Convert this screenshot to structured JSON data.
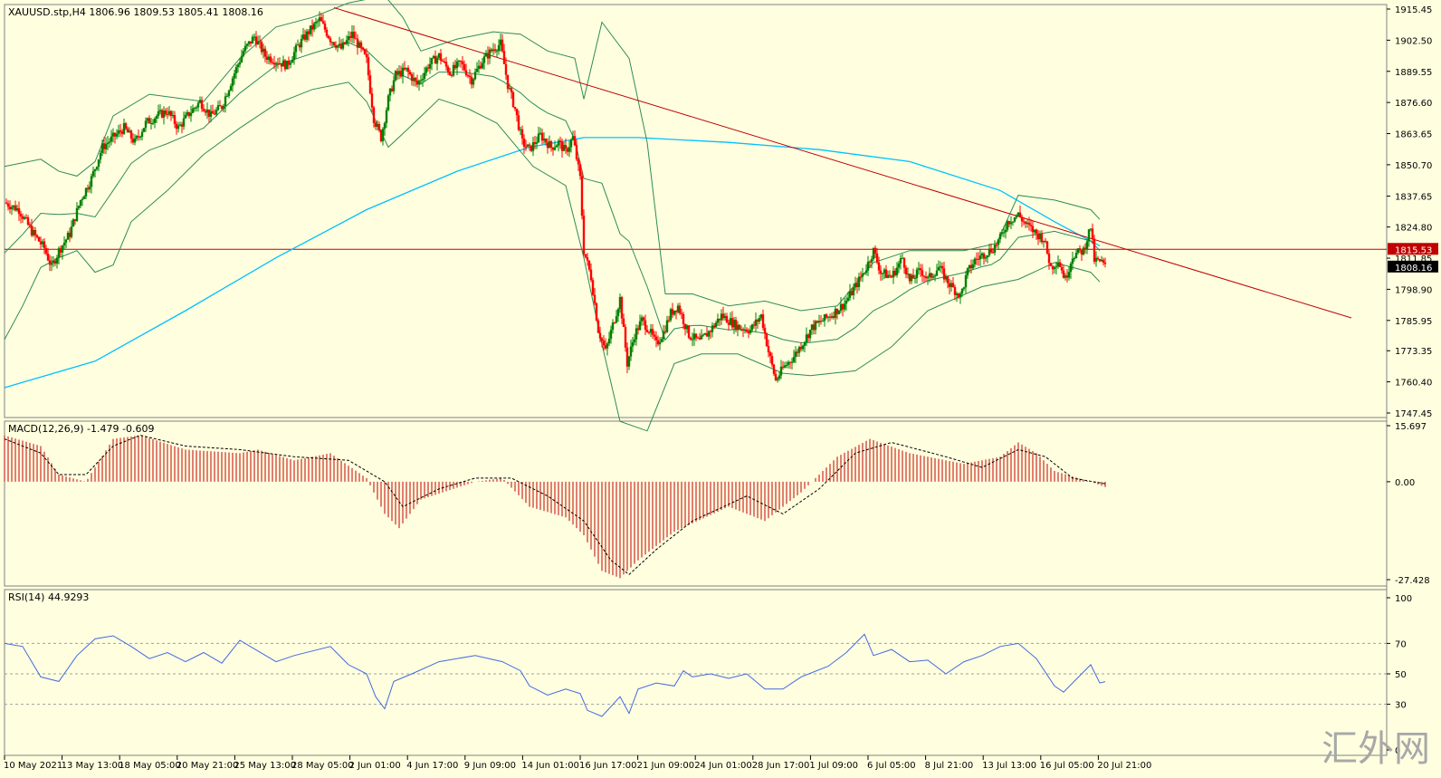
{
  "main_panel": {
    "title": "XAUUSD.stp,H4  1806.96 1809.53 1805.41 1808.16",
    "price_ticks": [
      "1915.45",
      "1902.50",
      "1889.55",
      "1876.60",
      "1863.65",
      "1850.70",
      "1837.65",
      "1824.80",
      "1811.85",
      "1798.90",
      "1785.95",
      "1773.35",
      "1760.40",
      "1747.45"
    ],
    "hline_label": "1815.53",
    "current_label": "1808.16"
  },
  "macd_panel": {
    "title": "MACD(12,26,9) -1.479 -0.609",
    "ticks": [
      "15.697",
      "0.00",
      "-27.428"
    ]
  },
  "rsi_panel": {
    "title": "RSI(14) 44.9293",
    "ticks": [
      "100",
      "70",
      "50",
      "30",
      "0"
    ]
  },
  "time_axis": [
    "10 May 2021",
    "13 May 13:00",
    "18 May 05:00",
    "20 May 21:00",
    "25 May 13:00",
    "28 May 05:00",
    "2 Jun 01:00",
    "4 Jun 17:00",
    "9 Jun 09:00",
    "14 Jun 01:00",
    "16 Jun 17:00",
    "21 Jun 09:00",
    "24 Jun 01:00",
    "28 Jun 17:00",
    "1 Jul 09:00",
    "6 Jul 05:00",
    "8 Jul 21:00",
    "13 Jul 13:00",
    "16 Jul 05:00",
    "20 Jul 21:00"
  ],
  "watermark": "汇外网",
  "colors": {
    "background": "#ffffe0",
    "bull": "#008000",
    "bear": "#ff0000",
    "ma": "#00c0ff",
    "bollinger": "#2e8b57",
    "trendline": "#c00000",
    "macd": "#c00000",
    "rsi": "#4169e1"
  },
  "chart_data": {
    "type": "line",
    "symbol": "XAUUSD.stp",
    "timeframe": "H4",
    "ylim": [
      1747.45,
      1915.45
    ],
    "close_path": [
      [
        0,
        1835
      ],
      [
        8,
        1832
      ],
      [
        15,
        1823
      ],
      [
        22,
        1816
      ],
      [
        26,
        1808
      ],
      [
        30,
        1815
      ],
      [
        36,
        1822
      ],
      [
        42,
        1836
      ],
      [
        48,
        1845
      ],
      [
        54,
        1858
      ],
      [
        60,
        1862
      ],
      [
        66,
        1866
      ],
      [
        72,
        1860
      ],
      [
        78,
        1868
      ],
      [
        84,
        1871
      ],
      [
        90,
        1873
      ],
      [
        96,
        1866
      ],
      [
        102,
        1872
      ],
      [
        108,
        1877
      ],
      [
        114,
        1871
      ],
      [
        120,
        1875
      ],
      [
        126,
        1887
      ],
      [
        132,
        1898
      ],
      [
        138,
        1904
      ],
      [
        144,
        1896
      ],
      [
        150,
        1894
      ],
      [
        156,
        1892
      ],
      [
        162,
        1900
      ],
      [
        168,
        1906
      ],
      [
        174,
        1911
      ],
      [
        180,
        1903
      ],
      [
        186,
        1899
      ],
      [
        192,
        1905
      ],
      [
        198,
        1897
      ],
      [
        200,
        1894
      ],
      [
        204,
        1870
      ],
      [
        208,
        1862
      ],
      [
        212,
        1878
      ],
      [
        216,
        1888
      ],
      [
        222,
        1890
      ],
      [
        228,
        1884
      ],
      [
        234,
        1892
      ],
      [
        240,
        1896
      ],
      [
        246,
        1889
      ],
      [
        252,
        1893
      ],
      [
        258,
        1886
      ],
      [
        264,
        1894
      ],
      [
        270,
        1899
      ],
      [
        274,
        1901
      ],
      [
        278,
        1884
      ],
      [
        282,
        1874
      ],
      [
        286,
        1860
      ],
      [
        290,
        1857
      ],
      [
        296,
        1863
      ],
      [
        302,
        1858
      ],
      [
        306,
        1860
      ],
      [
        310,
        1856
      ],
      [
        314,
        1862
      ],
      [
        318,
        1845
      ],
      [
        320,
        1815
      ],
      [
        324,
        1804
      ],
      [
        328,
        1782
      ],
      [
        332,
        1773
      ],
      [
        336,
        1784
      ],
      [
        340,
        1795
      ],
      [
        344,
        1768
      ],
      [
        348,
        1780
      ],
      [
        352,
        1786
      ],
      [
        356,
        1782
      ],
      [
        360,
        1776
      ],
      [
        364,
        1781
      ],
      [
        368,
        1789
      ],
      [
        372,
        1792
      ],
      [
        378,
        1780
      ],
      [
        384,
        1777
      ],
      [
        390,
        1782
      ],
      [
        396,
        1788
      ],
      [
        400,
        1786
      ],
      [
        406,
        1783
      ],
      [
        412,
        1782
      ],
      [
        418,
        1788
      ],
      [
        422,
        1773
      ],
      [
        426,
        1761
      ],
      [
        430,
        1766
      ],
      [
        436,
        1771
      ],
      [
        442,
        1778
      ],
      [
        446,
        1783
      ],
      [
        452,
        1786
      ],
      [
        458,
        1789
      ],
      [
        464,
        1793
      ],
      [
        470,
        1800
      ],
      [
        476,
        1808
      ],
      [
        480,
        1815
      ],
      [
        484,
        1806
      ],
      [
        490,
        1804
      ],
      [
        496,
        1812
      ],
      [
        500,
        1802
      ],
      [
        506,
        1807
      ],
      [
        510,
        1803
      ],
      [
        516,
        1808
      ],
      [
        522,
        1801
      ],
      [
        528,
        1796
      ],
      [
        532,
        1806
      ],
      [
        536,
        1811
      ],
      [
        542,
        1814
      ],
      [
        546,
        1816
      ],
      [
        550,
        1820
      ],
      [
        554,
        1827
      ],
      [
        560,
        1830
      ],
      [
        564,
        1826
      ],
      [
        570,
        1822
      ],
      [
        574,
        1820
      ],
      [
        578,
        1808
      ],
      [
        582,
        1811
      ],
      [
        586,
        1803
      ],
      [
        590,
        1813
      ],
      [
        596,
        1815
      ],
      [
        600,
        1825
      ],
      [
        602,
        1811
      ],
      [
        606,
        1810
      ],
      [
        608,
        1808.16
      ]
    ],
    "ma_path": [
      [
        0,
        1758
      ],
      [
        50,
        1769
      ],
      [
        100,
        1790
      ],
      [
        150,
        1812
      ],
      [
        200,
        1832
      ],
      [
        250,
        1848
      ],
      [
        290,
        1858
      ],
      [
        320,
        1862
      ],
      [
        350,
        1862
      ],
      [
        400,
        1860
      ],
      [
        450,
        1857
      ],
      [
        500,
        1852
      ],
      [
        550,
        1840
      ],
      [
        580,
        1827
      ],
      [
        605,
        1817
      ]
    ],
    "bb_upper": [
      [
        0,
        1850
      ],
      [
        20,
        1853
      ],
      [
        30,
        1848
      ],
      [
        40,
        1846
      ],
      [
        50,
        1852
      ],
      [
        60,
        1871
      ],
      [
        80,
        1880
      ],
      [
        110,
        1877
      ],
      [
        130,
        1895
      ],
      [
        150,
        1908
      ],
      [
        170,
        1912
      ],
      [
        190,
        1918
      ],
      [
        210,
        1921
      ],
      [
        220,
        1912
      ],
      [
        230,
        1898
      ],
      [
        250,
        1903
      ],
      [
        270,
        1906
      ],
      [
        285,
        1905
      ],
      [
        300,
        1898
      ],
      [
        315,
        1895
      ],
      [
        320,
        1878
      ],
      [
        330,
        1910
      ],
      [
        345,
        1895
      ],
      [
        355,
        1860
      ],
      [
        365,
        1797
      ],
      [
        380,
        1797
      ],
      [
        400,
        1792
      ],
      [
        420,
        1794
      ],
      [
        440,
        1790
      ],
      [
        460,
        1792
      ],
      [
        480,
        1810
      ],
      [
        500,
        1815
      ],
      [
        530,
        1815
      ],
      [
        548,
        1818
      ],
      [
        560,
        1838
      ],
      [
        580,
        1836
      ],
      [
        600,
        1832
      ],
      [
        605,
        1828
      ]
    ],
    "bb_lower": [
      [
        0,
        1778
      ],
      [
        10,
        1792
      ],
      [
        20,
        1808
      ],
      [
        30,
        1812
      ],
      [
        40,
        1815
      ],
      [
        50,
        1806
      ],
      [
        60,
        1809
      ],
      [
        70,
        1827
      ],
      [
        90,
        1840
      ],
      [
        110,
        1855
      ],
      [
        130,
        1866
      ],
      [
        150,
        1876
      ],
      [
        170,
        1882
      ],
      [
        190,
        1885
      ],
      [
        200,
        1877
      ],
      [
        212,
        1858
      ],
      [
        222,
        1865
      ],
      [
        240,
        1878
      ],
      [
        256,
        1874
      ],
      [
        272,
        1868
      ],
      [
        292,
        1850
      ],
      [
        310,
        1842
      ],
      [
        320,
        1812
      ],
      [
        330,
        1776
      ],
      [
        340,
        1744
      ],
      [
        355,
        1740
      ],
      [
        370,
        1768
      ],
      [
        385,
        1772
      ],
      [
        405,
        1772
      ],
      [
        430,
        1764
      ],
      [
        445,
        1763
      ],
      [
        470,
        1765
      ],
      [
        490,
        1775
      ],
      [
        510,
        1790
      ],
      [
        540,
        1800
      ],
      [
        560,
        1803
      ],
      [
        580,
        1810
      ],
      [
        600,
        1806
      ],
      [
        605,
        1802
      ]
    ],
    "trendline": [
      [
        182,
        1916
      ],
      [
        744,
        1787
      ]
    ],
    "hline": 1815.53,
    "macd_ylim": [
      -27.428,
      15.697
    ],
    "macd_hist": [
      [
        0,
        13
      ],
      [
        20,
        10
      ],
      [
        30,
        2
      ],
      [
        45,
        0
      ],
      [
        60,
        12
      ],
      [
        75,
        13
      ],
      [
        100,
        9
      ],
      [
        130,
        8
      ],
      [
        140,
        9
      ],
      [
        160,
        6
      ],
      [
        180,
        8
      ],
      [
        200,
        1
      ],
      [
        210,
        -9
      ],
      [
        218,
        -13
      ],
      [
        230,
        -5
      ],
      [
        260,
        0
      ],
      [
        275,
        1
      ],
      [
        290,
        -7
      ],
      [
        310,
        -10
      ],
      [
        320,
        -15
      ],
      [
        330,
        -25
      ],
      [
        340,
        -27
      ],
      [
        350,
        -22
      ],
      [
        370,
        -14
      ],
      [
        400,
        -7
      ],
      [
        420,
        -11
      ],
      [
        430,
        -7
      ],
      [
        440,
        -3
      ],
      [
        460,
        7
      ],
      [
        478,
        12
      ],
      [
        500,
        8
      ],
      [
        530,
        5
      ],
      [
        550,
        7
      ],
      [
        560,
        11
      ],
      [
        570,
        8
      ],
      [
        580,
        3
      ],
      [
        600,
        0
      ],
      [
        608,
        -1.5
      ]
    ],
    "macd_signal": [
      [
        0,
        12
      ],
      [
        20,
        8
      ],
      [
        30,
        2
      ],
      [
        45,
        2
      ],
      [
        60,
        10
      ],
      [
        75,
        13
      ],
      [
        100,
        10
      ],
      [
        130,
        9
      ],
      [
        160,
        7
      ],
      [
        190,
        6
      ],
      [
        210,
        0
      ],
      [
        220,
        -7
      ],
      [
        240,
        -2
      ],
      [
        260,
        1
      ],
      [
        280,
        1
      ],
      [
        300,
        -4
      ],
      [
        320,
        -11
      ],
      [
        335,
        -22
      ],
      [
        345,
        -26
      ],
      [
        360,
        -19
      ],
      [
        380,
        -11
      ],
      [
        410,
        -4
      ],
      [
        430,
        -9
      ],
      [
        450,
        -2
      ],
      [
        470,
        8
      ],
      [
        490,
        11
      ],
      [
        520,
        7
      ],
      [
        540,
        4
      ],
      [
        560,
        9
      ],
      [
        575,
        7
      ],
      [
        590,
        1
      ],
      [
        608,
        -0.6
      ]
    ],
    "rsi_path": [
      [
        0,
        70
      ],
      [
        10,
        68
      ],
      [
        20,
        48
      ],
      [
        30,
        45
      ],
      [
        40,
        62
      ],
      [
        50,
        73
      ],
      [
        60,
        75
      ],
      [
        70,
        68
      ],
      [
        80,
        60
      ],
      [
        90,
        64
      ],
      [
        100,
        58
      ],
      [
        110,
        64
      ],
      [
        120,
        57
      ],
      [
        130,
        72
      ],
      [
        140,
        65
      ],
      [
        150,
        58
      ],
      [
        160,
        62
      ],
      [
        170,
        65
      ],
      [
        180,
        68
      ],
      [
        190,
        56
      ],
      [
        200,
        50
      ],
      [
        205,
        35
      ],
      [
        210,
        27
      ],
      [
        215,
        45
      ],
      [
        225,
        50
      ],
      [
        240,
        58
      ],
      [
        260,
        62
      ],
      [
        275,
        58
      ],
      [
        285,
        52
      ],
      [
        290,
        42
      ],
      [
        300,
        36
      ],
      [
        310,
        40
      ],
      [
        318,
        37
      ],
      [
        322,
        26
      ],
      [
        330,
        22
      ],
      [
        340,
        35
      ],
      [
        345,
        24
      ],
      [
        350,
        40
      ],
      [
        360,
        44
      ],
      [
        370,
        42
      ],
      [
        375,
        52
      ],
      [
        380,
        48
      ],
      [
        390,
        50
      ],
      [
        400,
        47
      ],
      [
        410,
        50
      ],
      [
        420,
        40
      ],
      [
        430,
        40
      ],
      [
        440,
        48
      ],
      [
        455,
        55
      ],
      [
        465,
        64
      ],
      [
        475,
        76
      ],
      [
        480,
        62
      ],
      [
        490,
        66
      ],
      [
        500,
        58
      ],
      [
        510,
        59
      ],
      [
        520,
        50
      ],
      [
        530,
        58
      ],
      [
        540,
        62
      ],
      [
        550,
        68
      ],
      [
        560,
        70
      ],
      [
        570,
        60
      ],
      [
        580,
        42
      ],
      [
        585,
        38
      ],
      [
        595,
        50
      ],
      [
        600,
        56
      ],
      [
        605,
        44
      ],
      [
        608,
        44.9
      ]
    ],
    "rsi_levels": [
      70,
      50,
      30
    ]
  }
}
